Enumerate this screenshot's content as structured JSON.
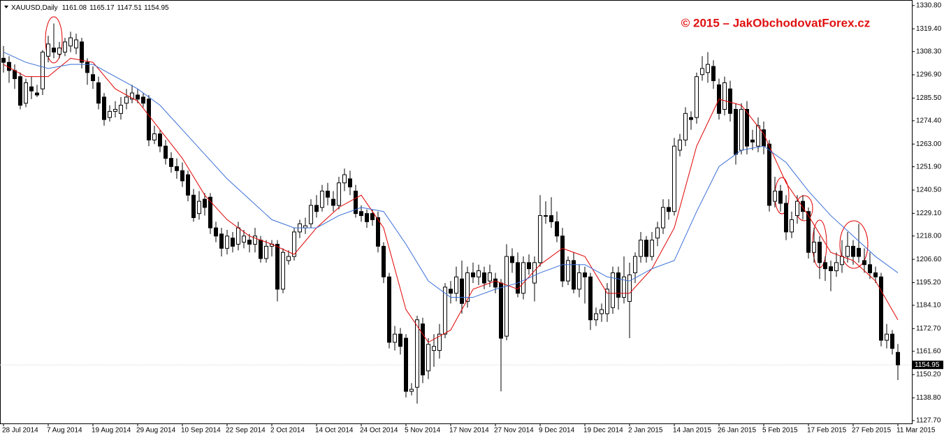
{
  "chart_data": {
    "type": "candlestick",
    "title": "XAUUSD,Daily",
    "annotation": "© 2015 – JakObchodovatForex.cz",
    "ylim": [
      1126.3,
      1333.5
    ],
    "yticks": [
      {
        "value": 1330.8,
        "label": "1330.80"
      },
      {
        "value": 1319.4,
        "label": "1319.40"
      },
      {
        "value": 1308.3,
        "label": "1308.30"
      },
      {
        "value": 1296.9,
        "label": "1296.90"
      },
      {
        "value": 1285.5,
        "label": "1285.50"
      },
      {
        "value": 1274.4,
        "label": "1274.40"
      },
      {
        "value": 1263.0,
        "label": "1263.00"
      },
      {
        "value": 1251.9,
        "label": "1251.90"
      },
      {
        "value": 1240.5,
        "label": "1240.50"
      },
      {
        "value": 1229.1,
        "label": "1229.10"
      },
      {
        "value": 1218.0,
        "label": "1218.00"
      },
      {
        "value": 1206.6,
        "label": "1206.60"
      },
      {
        "value": 1195.2,
        "label": "1195.20"
      },
      {
        "value": 1184.1,
        "label": "1184.10"
      },
      {
        "value": 1172.7,
        "label": "1172.70"
      },
      {
        "value": 1161.6,
        "label": "1161.60"
      },
      {
        "value": 1150.2,
        "label": "1150.20"
      },
      {
        "value": 1138.8,
        "label": "1138.80"
      },
      {
        "value": 1127.7,
        "label": "1127.70"
      }
    ],
    "xticks": [
      {
        "value": 0,
        "label": "28 Jul 2014"
      },
      {
        "value": 8,
        "label": "7 Aug 2014"
      },
      {
        "value": 16,
        "label": "19 Aug 2014"
      },
      {
        "value": 24,
        "label": "29 Aug 2014"
      },
      {
        "value": 32,
        "label": "10 Sep 2014"
      },
      {
        "value": 40,
        "label": "22 Sep 2014"
      },
      {
        "value": 48,
        "label": "2 Oct 2014"
      },
      {
        "value": 56,
        "label": "14 Oct 2014"
      },
      {
        "value": 64,
        "label": "24 Oct 2014"
      },
      {
        "value": 72,
        "label": "5 Nov 2014"
      },
      {
        "value": 80,
        "label": "17 Nov 2014"
      },
      {
        "value": 88,
        "label": "27 Nov 2014"
      },
      {
        "value": 96,
        "label": "9 Dec 2014"
      },
      {
        "value": 104,
        "label": "19 Dec 2014"
      },
      {
        "value": 112,
        "label": "2 Jan 2015"
      },
      {
        "value": 120,
        "label": "14 Jan 2015"
      },
      {
        "value": 128,
        "label": "26 Jan 2015"
      },
      {
        "value": 136,
        "label": "5 Feb 2015"
      },
      {
        "value": 144,
        "label": "17 Feb 2015"
      },
      {
        "value": 152,
        "label": "27 Feb 2015"
      },
      {
        "value": 160,
        "label": "11 Mar 2015"
      }
    ],
    "open": [
      1305,
      1303,
      1299,
      1296,
      1283,
      1291,
      1288,
      1290,
      1306,
      1310,
      1307,
      1308,
      1311,
      1310,
      1313,
      1303,
      1297,
      1293,
      1286,
      1276,
      1279,
      1278,
      1283,
      1285,
      1287,
      1286,
      1285,
      1265,
      1268,
      1262,
      1256,
      1252,
      1250,
      1248,
      1238,
      1229,
      1236,
      1237,
      1222,
      1219,
      1212,
      1217,
      1214,
      1215,
      1216,
      1214,
      1216,
      1207,
      1213,
      1214,
      1192,
      1206,
      1208,
      1220,
      1222,
      1224,
      1233,
      1232,
      1240,
      1236,
      1233,
      1244,
      1246,
      1240,
      1230,
      1229,
      1229,
      1227,
      1213,
      1198,
      1166,
      1170,
      1168,
      1142,
      1144,
      1175,
      1152,
      1162,
      1162,
      1170,
      1192,
      1190,
      1197,
      1186,
      1200,
      1198,
      1200,
      1196,
      1197,
      1195,
      1169,
      1208,
      1205,
      1190,
      1205,
      1195,
      1205,
      1228,
      1228,
      1225,
      1218,
      1196,
      1206,
      1192,
      1200,
      1198,
      1177,
      1180,
      1180,
      1183,
      1200,
      1188,
      1186,
      1200,
      1208,
      1216,
      1208,
      1217,
      1222,
      1232,
      1230,
      1260,
      1265,
      1276,
      1276,
      1297,
      1298,
      1301,
      1292,
      1280,
      1290,
      1280,
      1260,
      1280,
      1265,
      1262,
      1270,
      1263,
      1235,
      1240,
      1234,
      1220,
      1228,
      1235,
      1230,
      1210,
      1215,
      1205,
      1203,
      1201,
      1204,
      1208,
      1213,
      1212,
      1206,
      1204,
      1200,
      1198,
      1167,
      1170,
      1161.08
    ],
    "high": [
      1311,
      1306,
      1302,
      1298,
      1295,
      1296,
      1292,
      1309,
      1316,
      1322,
      1313,
      1315,
      1318,
      1317,
      1315,
      1305,
      1301,
      1296,
      1288,
      1282,
      1284,
      1286,
      1290,
      1292,
      1290,
      1288,
      1287,
      1272,
      1270,
      1265,
      1259,
      1256,
      1254,
      1250,
      1241,
      1240,
      1239,
      1239,
      1225,
      1222,
      1221,
      1220,
      1225,
      1221,
      1219,
      1222,
      1218,
      1216,
      1216,
      1216,
      1212,
      1211,
      1222,
      1226,
      1227,
      1236,
      1238,
      1243,
      1244,
      1240,
      1247,
      1251,
      1250,
      1243,
      1233,
      1231,
      1231,
      1230,
      1215,
      1200,
      1174,
      1173,
      1170,
      1146,
      1179,
      1178,
      1168,
      1170,
      1175,
      1195,
      1196,
      1203,
      1206,
      1203,
      1205,
      1204,
      1203,
      1204,
      1200,
      1197,
      1214,
      1212,
      1210,
      1208,
      1209,
      1208,
      1238,
      1235,
      1237,
      1230,
      1222,
      1208,
      1210,
      1204,
      1203,
      1200,
      1183,
      1185,
      1195,
      1203,
      1203,
      1208,
      1205,
      1210,
      1220,
      1218,
      1220,
      1225,
      1236,
      1236,
      1266,
      1268,
      1281,
      1279,
      1298,
      1306,
      1308,
      1304,
      1295,
      1296,
      1294,
      1283,
      1283,
      1284,
      1270,
      1276,
      1274,
      1265,
      1247,
      1243,
      1238,
      1230,
      1238,
      1238,
      1232,
      1222,
      1218,
      1208,
      1206,
      1210,
      1216,
      1220,
      1216,
      1224,
      1212,
      1210,
      1203,
      1200,
      1175,
      1172,
      1165.17
    ],
    "low": [
      1298,
      1293,
      1290,
      1280,
      1281,
      1285,
      1286,
      1287,
      1303,
      1305,
      1305,
      1306,
      1308,
      1307,
      1300,
      1292,
      1290,
      1280,
      1272,
      1274,
      1276,
      1275,
      1280,
      1283,
      1283,
      1281,
      1262,
      1263,
      1259,
      1253,
      1249,
      1246,
      1242,
      1235,
      1225,
      1226,
      1228,
      1219,
      1215,
      1208,
      1209,
      1210,
      1211,
      1212,
      1210,
      1210,
      1205,
      1205,
      1208,
      1186,
      1190,
      1204,
      1206,
      1217,
      1219,
      1222,
      1227,
      1230,
      1233,
      1230,
      1231,
      1240,
      1238,
      1227,
      1225,
      1222,
      1223,
      1210,
      1195,
      1163,
      1162,
      1160,
      1139,
      1140,
      1136,
      1146,
      1148,
      1154,
      1158,
      1168,
      1185,
      1186,
      1180,
      1183,
      1195,
      1194,
      1192,
      1193,
      1190,
      1142,
      1167,
      1200,
      1188,
      1187,
      1199,
      1186,
      1203,
      1224,
      1222,
      1215,
      1193,
      1194,
      1190,
      1188,
      1185,
      1172,
      1174,
      1176,
      1176,
      1180,
      1182,
      1185,
      1168,
      1195,
      1205,
      1205,
      1206,
      1213,
      1219,
      1226,
      1228,
      1257,
      1262,
      1270,
      1273,
      1294,
      1293,
      1290,
      1275,
      1277,
      1274,
      1253,
      1258,
      1258,
      1260,
      1259,
      1258,
      1230,
      1232,
      1230,
      1216,
      1217,
      1224,
      1226,
      1207,
      1205,
      1197,
      1196,
      1191,
      1198,
      1200,
      1205,
      1204,
      1205,
      1200,
      1197,
      1195,
      1164,
      1163,
      1160,
      1147.51
    ],
    "close": [
      1303,
      1299,
      1295,
      1282,
      1293,
      1289,
      1287,
      1308,
      1312,
      1308,
      1310,
      1313,
      1315,
      1314,
      1303,
      1298,
      1294,
      1283,
      1275,
      1279,
      1280,
      1282,
      1286,
      1288,
      1285,
      1283,
      1265,
      1268,
      1262,
      1256,
      1252,
      1250,
      1245,
      1238,
      1227,
      1235,
      1232,
      1222,
      1218,
      1212,
      1218,
      1213,
      1222,
      1218,
      1214,
      1218,
      1207,
      1213,
      1214,
      1192,
      1210,
      1208,
      1220,
      1224,
      1223,
      1233,
      1230,
      1240,
      1237,
      1233,
      1244,
      1248,
      1242,
      1229,
      1228,
      1225,
      1226,
      1213,
      1198,
      1166,
      1170,
      1164,
      1142,
      1143,
      1177,
      1150,
      1165,
      1164,
      1170,
      1193,
      1190,
      1198,
      1185,
      1200,
      1198,
      1201,
      1195,
      1200,
      1193,
      1168,
      1208,
      1205,
      1190,
      1205,
      1202,
      1205,
      1228,
      1228,
      1225,
      1218,
      1196,
      1206,
      1192,
      1200,
      1198,
      1177,
      1180,
      1182,
      1192,
      1200,
      1188,
      1198,
      1199,
      1208,
      1216,
      1208,
      1216,
      1222,
      1232,
      1230,
      1262,
      1265,
      1278,
      1275,
      1296,
      1300,
      1302,
      1294,
      1278,
      1293,
      1278,
      1258,
      1280,
      1262,
      1264,
      1272,
      1262,
      1233,
      1240,
      1234,
      1220,
      1226,
      1235,
      1230,
      1210,
      1215,
      1205,
      1202,
      1201,
      1205,
      1208,
      1213,
      1208,
      1208,
      1204,
      1200,
      1198,
      1167,
      1170,
      1163,
      1154.95
    ],
    "series": [
      {
        "color": "#e00000",
        "x": [
          0,
          4,
          8,
          12,
          16,
          20,
          24,
          28,
          32,
          36,
          40,
          44,
          48,
          52,
          56,
          60,
          64,
          68,
          72,
          76,
          80,
          84,
          88,
          92,
          96,
          100,
          104,
          108,
          112,
          116,
          120,
          124,
          128,
          132,
          136,
          140,
          144,
          148,
          152,
          156,
          160
        ],
        "values": [
          1302,
          1296,
          1296,
          1305,
          1303,
          1290,
          1284,
          1270,
          1256,
          1238,
          1226,
          1218,
          1214,
          1209,
          1222,
          1232,
          1238,
          1222,
          1182,
          1166,
          1172,
          1192,
          1196,
          1192,
          1204,
          1212,
          1208,
          1190,
          1190,
          1202,
          1222,
          1262,
          1285,
          1282,
          1268,
          1244,
          1228,
          1210,
          1206,
          1196,
          1177
        ]
      },
      {
        "color": "#3a6fd8",
        "x": [
          0,
          4,
          8,
          12,
          16,
          20,
          24,
          28,
          32,
          36,
          40,
          44,
          48,
          52,
          56,
          60,
          64,
          68,
          72,
          76,
          80,
          84,
          88,
          92,
          96,
          100,
          104,
          108,
          112,
          116,
          120,
          124,
          128,
          132,
          136,
          140,
          144,
          148,
          152,
          156,
          160
        ],
        "values": [
          1308,
          1303,
          1300,
          1302,
          1302,
          1296,
          1290,
          1282,
          1270,
          1258,
          1246,
          1236,
          1226,
          1222,
          1222,
          1228,
          1232,
          1230,
          1214,
          1196,
          1188,
          1188,
          1192,
          1195,
          1200,
          1204,
          1204,
          1198,
          1196,
          1202,
          1206,
          1230,
          1252,
          1260,
          1262,
          1254,
          1240,
          1228,
          1218,
          1208,
          1200
        ]
      }
    ]
  }
}
